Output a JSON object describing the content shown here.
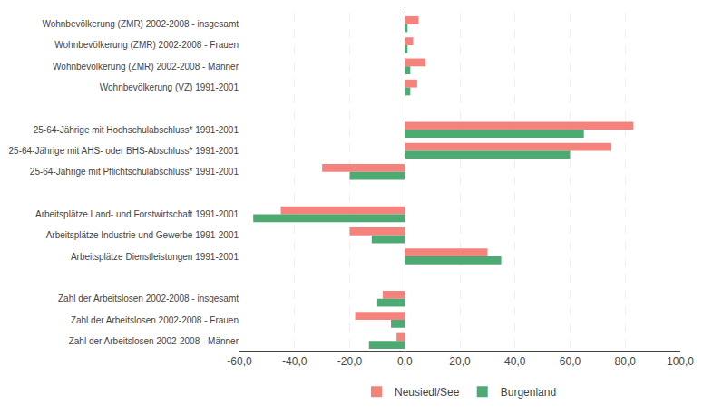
{
  "chart_data": {
    "type": "bar",
    "orientation": "horizontal",
    "categories": [
      "Wohnbevölkerung (ZMR) 2002-2008 - insgesamt",
      "Wohnbevölkerung (ZMR) 2002-2008 - Frauen",
      "Wohnbevölkerung (ZMR) 2002-2008 - Männer",
      "Wohnbevölkerung (VZ) 1991-2001",
      null,
      "25-64-Jährige mit Hochschulabschluss* 1991-2001",
      "25-64-Jährige mit AHS- oder BHS-Abschluss* 1991-2001",
      "25-64-Jährige mit Pflichtschulabschluss* 1991-2001",
      null,
      "Arbeitsplätze Land- und Forstwirtschaft 1991-2001",
      "Arbeitsplätze Industrie und Gewerbe 1991-2001",
      "Arbeitsplätze Dienstleistungen 1991-2001",
      null,
      "Zahl der Arbeitslosen 2002-2008 - insgesamt",
      "Zahl der Arbeitslosen 2002-2008 - Frauen",
      "Zahl der Arbeitslosen 2002-2008 - Männer"
    ],
    "series": [
      {
        "name": "Neusiedl/See",
        "color": "#f4837d",
        "values": [
          5.0,
          3.0,
          7.5,
          4.5,
          null,
          83.0,
          75.0,
          -30.0,
          null,
          -45.0,
          -20.0,
          30.0,
          null,
          -8.0,
          -18.0,
          -3.0
        ]
      },
      {
        "name": "Burgenland",
        "color": "#4daa72",
        "values": [
          1.0,
          1.0,
          2.0,
          2.0,
          null,
          65.0,
          60.0,
          -20.0,
          null,
          -55.0,
          -12.0,
          35.0,
          null,
          -10.0,
          -5.0,
          -13.0
        ]
      }
    ],
    "xlim": [
      -60,
      100
    ],
    "xticks": [
      {
        "value": -60,
        "label": "-60,0"
      },
      {
        "value": -40,
        "label": "-40,0"
      },
      {
        "value": -20,
        "label": "-20,0"
      },
      {
        "value": 0,
        "label": "0,0"
      },
      {
        "value": 20,
        "label": "20,0"
      },
      {
        "value": 40,
        "label": "40,0"
      },
      {
        "value": 60,
        "label": "60,0"
      },
      {
        "value": 80,
        "label": "80,0"
      },
      {
        "value": 100,
        "label": "100,0"
      }
    ],
    "grid": true,
    "legend": "bottom"
  }
}
